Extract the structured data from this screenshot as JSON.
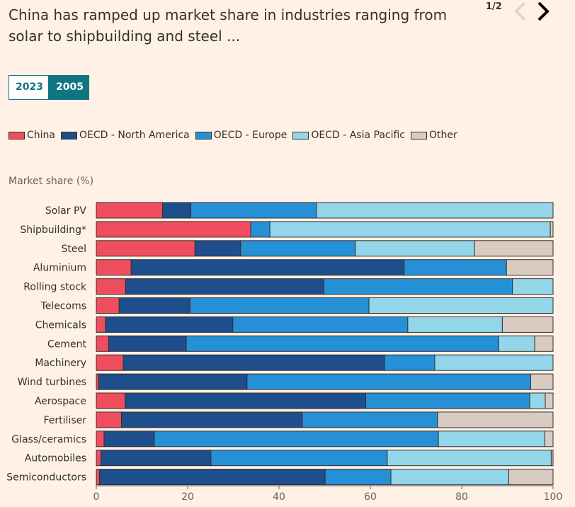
{
  "header": {
    "title": "China has ramped up market share in industries ranging from solar to shipbuilding and steel ...",
    "pager": "1/2"
  },
  "toggle": {
    "options": [
      "2023",
      "2005"
    ],
    "selected": "2005"
  },
  "colors": {
    "China": "#f04e5e",
    "OECD - North America": "#1f4e8c",
    "OECD - Europe": "#2690d6",
    "OECD - Asia Pacific": "#93d6ea",
    "Other": "#d9cbc1",
    "accent": "#0d7680"
  },
  "chart_data": {
    "type": "bar",
    "orientation": "horizontal",
    "stacked": true,
    "ylabel": "Market share (%)",
    "xlim": [
      0,
      100
    ],
    "xticks": [
      0,
      20,
      40,
      60,
      80,
      100
    ],
    "legend": [
      "China",
      "OECD - North America",
      "OECD - Europe",
      "OECD - Asia Pacific",
      "Other"
    ],
    "categories": [
      "Solar PV",
      "Shipbuilding*",
      "Steel",
      "Aluminium",
      "Rolling stock",
      "Telecoms",
      "Chemicals",
      "Cement",
      "Machinery",
      "Wind turbines",
      "Aerospace",
      "Fertiliser",
      "Glass/ceramics",
      "Automobiles",
      "Semiconductors"
    ],
    "series": [
      {
        "name": "China",
        "values": [
          14.5,
          33.8,
          21.6,
          7.6,
          6.4,
          5.0,
          2.0,
          2.7,
          5.9,
          0.5,
          6.3,
          5.5,
          1.7,
          1.0,
          0.7
        ]
      },
      {
        "name": "OECD - North America",
        "values": [
          6.2,
          0.0,
          10.0,
          59.8,
          43.4,
          15.5,
          27.9,
          17.0,
          57.2,
          32.5,
          52.7,
          39.6,
          11.0,
          24.1,
          49.4
        ]
      },
      {
        "name": "OECD - Europe",
        "values": [
          27.5,
          4.2,
          25.1,
          22.4,
          41.3,
          39.2,
          38.3,
          68.4,
          11.0,
          62.1,
          35.9,
          29.6,
          62.2,
          38.6,
          14.4
        ]
      },
      {
        "name": "OECD - Asia Pacific",
        "values": [
          51.8,
          61.4,
          26.1,
          0.0,
          8.9,
          40.3,
          20.7,
          7.9,
          25.9,
          0.0,
          3.4,
          0.0,
          23.3,
          35.9,
          25.8
        ]
      },
      {
        "name": "Other",
        "values": [
          0.0,
          0.6,
          17.2,
          10.2,
          0.0,
          0.0,
          11.1,
          4.0,
          0.0,
          4.9,
          1.7,
          25.3,
          1.8,
          0.4,
          9.7
        ]
      }
    ]
  }
}
